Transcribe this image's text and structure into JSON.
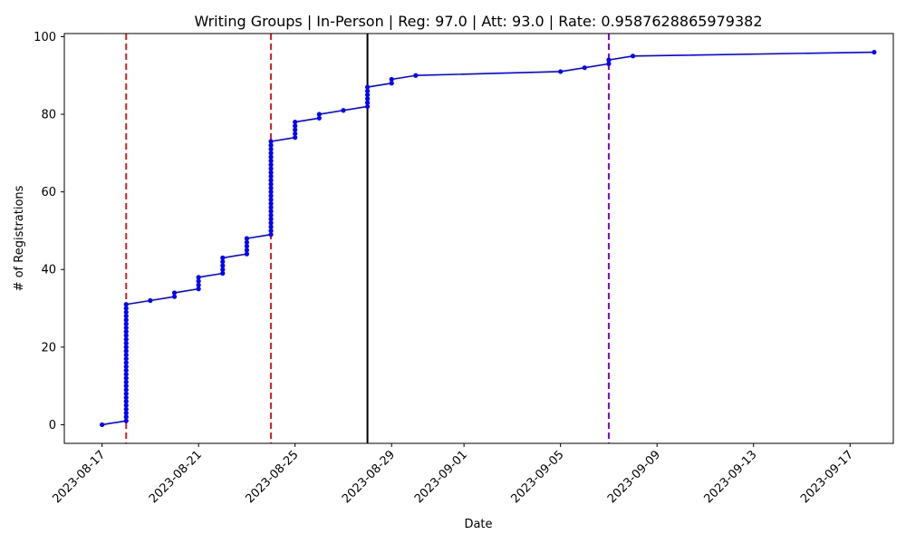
{
  "chart_data": {
    "type": "line",
    "title": "Writing Groups | In-Person | Reg: 97.0 | Att: 93.0 | Rate: 0.9587628865979382",
    "xlabel": "Date",
    "ylabel": "# of Registrations",
    "x_ticks": [
      "2023-08-17",
      "2023-08-21",
      "2023-08-25",
      "2023-08-29",
      "2023-09-01",
      "2023-09-05",
      "2023-09-09",
      "2023-09-13",
      "2023-09-17"
    ],
    "y_ticks": [
      0,
      20,
      40,
      60,
      80,
      100
    ],
    "xlim": [
      "2023-08-15T10:30",
      "2023-09-18T19:00"
    ],
    "ylim": [
      -4.8,
      100.8
    ],
    "grid": false,
    "colors": {
      "series": "#0000ff",
      "event_line_red": "#e41a1c",
      "event_line_black": "#000000",
      "event_line_purple": "#8000c0"
    },
    "series": [
      {
        "points": [
          [
            "2023-08-17",
            0
          ],
          [
            "2023-08-18",
            1
          ],
          [
            "2023-08-18",
            2
          ],
          [
            "2023-08-18",
            3
          ],
          [
            "2023-08-18",
            4
          ],
          [
            "2023-08-18",
            5
          ],
          [
            "2023-08-18",
            6
          ],
          [
            "2023-08-18",
            7
          ],
          [
            "2023-08-18",
            8
          ],
          [
            "2023-08-18",
            9
          ],
          [
            "2023-08-18",
            10
          ],
          [
            "2023-08-18",
            11
          ],
          [
            "2023-08-18",
            12
          ],
          [
            "2023-08-18",
            13
          ],
          [
            "2023-08-18",
            14
          ],
          [
            "2023-08-18",
            15
          ],
          [
            "2023-08-18",
            16
          ],
          [
            "2023-08-18",
            17
          ],
          [
            "2023-08-18",
            18
          ],
          [
            "2023-08-18",
            19
          ],
          [
            "2023-08-18",
            20
          ],
          [
            "2023-08-18",
            21
          ],
          [
            "2023-08-18",
            22
          ],
          [
            "2023-08-18",
            23
          ],
          [
            "2023-08-18",
            24
          ],
          [
            "2023-08-18",
            25
          ],
          [
            "2023-08-18",
            26
          ],
          [
            "2023-08-18",
            27
          ],
          [
            "2023-08-18",
            28
          ],
          [
            "2023-08-18",
            29
          ],
          [
            "2023-08-18",
            30
          ],
          [
            "2023-08-18",
            31
          ],
          [
            "2023-08-19",
            32
          ],
          [
            "2023-08-20",
            33
          ],
          [
            "2023-08-20",
            34
          ],
          [
            "2023-08-21",
            35
          ],
          [
            "2023-08-21",
            36
          ],
          [
            "2023-08-21",
            37
          ],
          [
            "2023-08-21",
            38
          ],
          [
            "2023-08-22",
            39
          ],
          [
            "2023-08-22",
            40
          ],
          [
            "2023-08-22",
            41
          ],
          [
            "2023-08-22",
            42
          ],
          [
            "2023-08-22",
            43
          ],
          [
            "2023-08-23",
            44
          ],
          [
            "2023-08-23",
            45
          ],
          [
            "2023-08-23",
            46
          ],
          [
            "2023-08-23",
            47
          ],
          [
            "2023-08-23",
            48
          ],
          [
            "2023-08-24",
            49
          ],
          [
            "2023-08-24",
            50
          ],
          [
            "2023-08-24",
            51
          ],
          [
            "2023-08-24",
            52
          ],
          [
            "2023-08-24",
            53
          ],
          [
            "2023-08-24",
            54
          ],
          [
            "2023-08-24",
            55
          ],
          [
            "2023-08-24",
            56
          ],
          [
            "2023-08-24",
            57
          ],
          [
            "2023-08-24",
            58
          ],
          [
            "2023-08-24",
            59
          ],
          [
            "2023-08-24",
            60
          ],
          [
            "2023-08-24",
            61
          ],
          [
            "2023-08-24",
            62
          ],
          [
            "2023-08-24",
            63
          ],
          [
            "2023-08-24",
            64
          ],
          [
            "2023-08-24",
            65
          ],
          [
            "2023-08-24",
            66
          ],
          [
            "2023-08-24",
            67
          ],
          [
            "2023-08-24",
            68
          ],
          [
            "2023-08-24",
            69
          ],
          [
            "2023-08-24",
            70
          ],
          [
            "2023-08-24",
            71
          ],
          [
            "2023-08-24",
            72
          ],
          [
            "2023-08-24",
            73
          ],
          [
            "2023-08-25",
            74
          ],
          [
            "2023-08-25",
            75
          ],
          [
            "2023-08-25",
            76
          ],
          [
            "2023-08-25",
            77
          ],
          [
            "2023-08-25",
            78
          ],
          [
            "2023-08-26",
            79
          ],
          [
            "2023-08-26",
            80
          ],
          [
            "2023-08-27",
            81
          ],
          [
            "2023-08-28",
            82
          ],
          [
            "2023-08-28",
            83
          ],
          [
            "2023-08-28",
            84
          ],
          [
            "2023-08-28",
            85
          ],
          [
            "2023-08-28",
            86
          ],
          [
            "2023-08-28",
            87
          ],
          [
            "2023-08-29",
            88
          ],
          [
            "2023-08-29",
            89
          ],
          [
            "2023-08-30",
            90
          ],
          [
            "2023-09-05",
            91
          ],
          [
            "2023-09-06",
            92
          ],
          [
            "2023-09-07",
            93
          ],
          [
            "2023-09-07",
            94
          ],
          [
            "2023-09-08",
            95
          ],
          [
            "2023-09-18",
            96
          ]
        ]
      }
    ],
    "vlines": [
      {
        "x": "2023-08-18",
        "color": "#e41a1c",
        "style": "dashed"
      },
      {
        "x": "2023-08-24",
        "color": "#e41a1c",
        "style": "dashed"
      },
      {
        "x": "2023-08-28",
        "color": "#000000",
        "style": "solid"
      },
      {
        "x": "2023-09-07",
        "color": "#8000c0",
        "style": "dashed"
      }
    ]
  }
}
